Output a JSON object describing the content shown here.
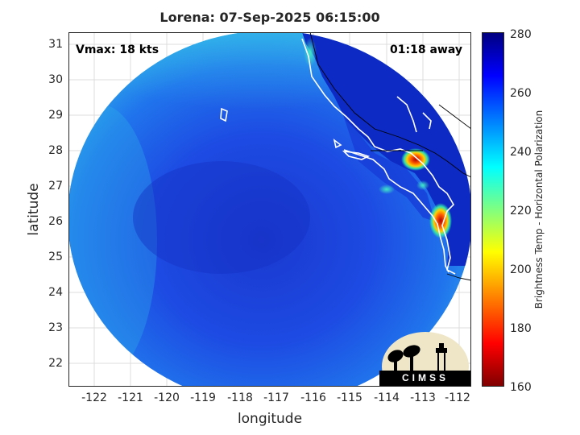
{
  "title": "Lorena: 07-Sep-2025 06:15:00",
  "vmax_text": "Vmax: 18 kts",
  "time_text": "01:18 away",
  "xlabel": "longitude",
  "ylabel": "latitude",
  "x_ticks": [
    "-122",
    "-121",
    "-120",
    "-119",
    "-118",
    "-117",
    "-116",
    "-115",
    "-114",
    "-113",
    "-112"
  ],
  "y_ticks": [
    "31",
    "30",
    "29",
    "28",
    "27",
    "26",
    "25",
    "24",
    "23",
    "22"
  ],
  "colorbar": {
    "label": "Brightness Temp - Horizontal Polarization",
    "ticks": [
      "280",
      "260",
      "240",
      "220",
      "200",
      "180",
      "160"
    ],
    "range": [
      160,
      280
    ]
  },
  "logo_text": "CIMSS",
  "map": {
    "x_range": [
      -122.6,
      -111.6
    ],
    "y_range": [
      21.35,
      31.35
    ],
    "swath_center": [
      -117.05,
      26.15
    ],
    "hot_spots": [
      {
        "lon": -113.0,
        "lat": 27.75,
        "tb": 190
      },
      {
        "lon": -112.4,
        "lat": 26.0,
        "tb": 195
      },
      {
        "lon": -116.2,
        "lat": 30.9,
        "tb": 250
      }
    ]
  },
  "colors": {
    "background_cold": "#1d46e0",
    "land_warm": "#0c2bcc",
    "edge_cyan": "#33c6e6",
    "coast": "#ffffff"
  }
}
